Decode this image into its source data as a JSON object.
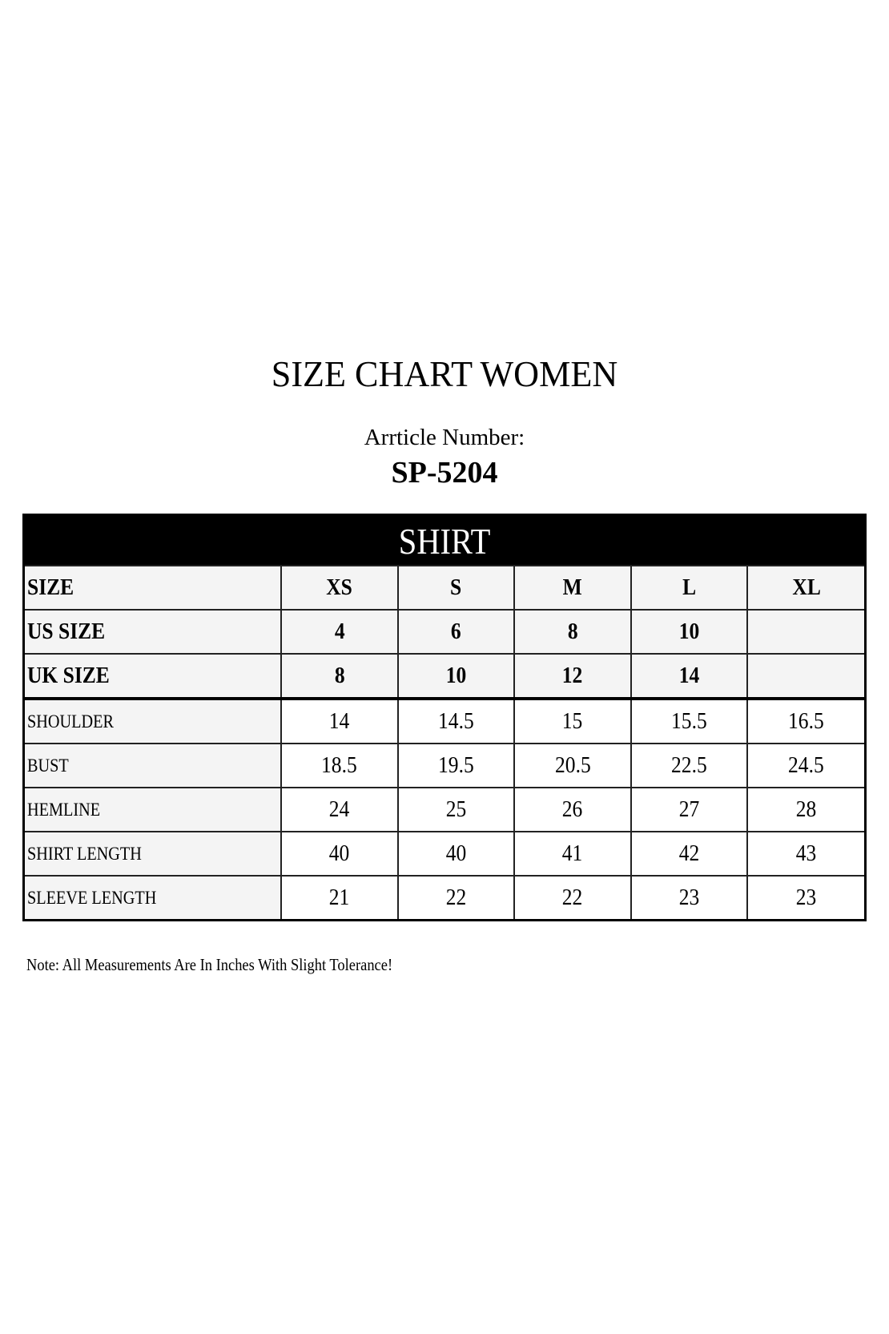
{
  "title": "SIZE CHART WOMEN",
  "article_label": "Arrticle Number:",
  "article_number": "SP-5204",
  "table": {
    "section": "SHIRT",
    "header_rows": [
      {
        "label": "SIZE",
        "values": [
          "XS",
          "S",
          "M",
          "L",
          "XL"
        ]
      },
      {
        "label": "US SIZE",
        "values": [
          "4",
          "6",
          "8",
          "10",
          ""
        ]
      },
      {
        "label": "UK SIZE",
        "values": [
          "8",
          "10",
          "12",
          "14",
          ""
        ]
      }
    ],
    "rows": [
      {
        "label": "SHOULDER",
        "values": [
          "14",
          "14.5",
          "15",
          "15.5",
          "16.5"
        ]
      },
      {
        "label": "BUST",
        "values": [
          "18.5",
          "19.5",
          "20.5",
          "22.5",
          "24.5"
        ]
      },
      {
        "label": "HEMLINE",
        "values": [
          "24",
          "25",
          "26",
          "27",
          "28"
        ]
      },
      {
        "label": "SHIRT LENGTH",
        "values": [
          "40",
          "40",
          "41",
          "42",
          "43"
        ]
      },
      {
        "label": "SLEEVE LENGTH",
        "values": [
          "21",
          "22",
          "22",
          "23",
          "23"
        ]
      }
    ]
  },
  "note": "Note: All Measurements Are In Inches With Slight Tolerance!"
}
